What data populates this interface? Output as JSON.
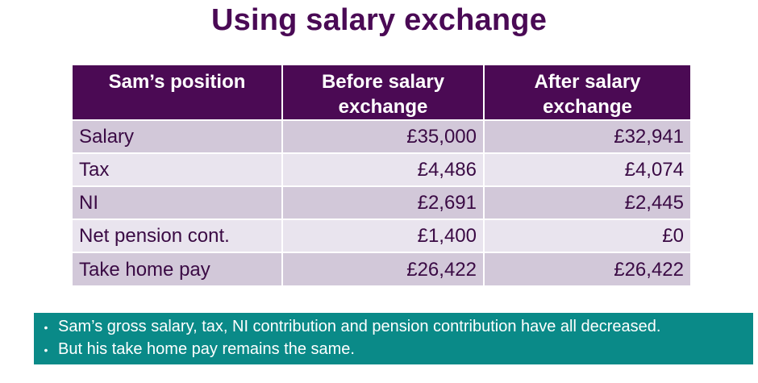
{
  "title": "Using salary exchange",
  "table": {
    "headers": [
      "Sam’s position",
      "Before salary exchange",
      "After salary exchange"
    ],
    "rows": [
      {
        "label": "Salary",
        "before": "£35,000",
        "after": "£32,941"
      },
      {
        "label": "Tax",
        "before": "£4,486",
        "after": "£4,074"
      },
      {
        "label": "NI",
        "before": "£2,691",
        "after": "£2,445"
      },
      {
        "label": "Net pension cont.",
        "before": "£1,400",
        "after": "£0"
      },
      {
        "label": "Take home pay",
        "before": "£26,422",
        "after": "£26,422"
      }
    ]
  },
  "notes": {
    "bullet_glyph": "•",
    "items": [
      "Sam’s gross salary, tax, NI contribution and pension contribution have all decreased.",
      "But his take home pay remains the same."
    ]
  },
  "colors": {
    "title": "#4a0a55",
    "header_bg": "#4b0a54",
    "row_dark": "#d2c8d9",
    "row_light": "#e9e4ee",
    "note_bg": "#0a8a88"
  }
}
